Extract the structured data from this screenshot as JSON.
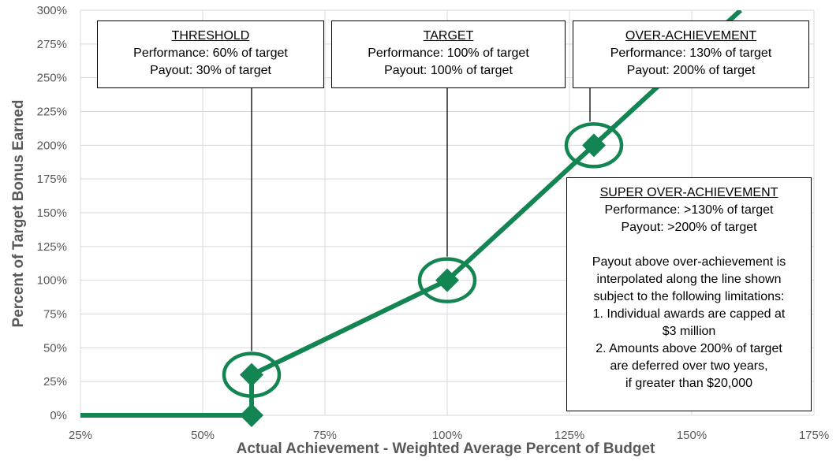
{
  "chart_data": {
    "type": "line",
    "x": [
      25,
      60,
      60,
      100,
      130,
      160
    ],
    "values": [
      0,
      0,
      30,
      100,
      200,
      300
    ],
    "markers": [
      {
        "x": 60,
        "y": 0,
        "highlighted": false
      },
      {
        "x": 60,
        "y": 30,
        "highlighted": true
      },
      {
        "x": 100,
        "y": 100,
        "highlighted": true
      },
      {
        "x": 130,
        "y": 200,
        "highlighted": true
      }
    ],
    "xlim": [
      25,
      175
    ],
    "ylim": [
      0,
      300
    ],
    "x_ticks": [
      25,
      50,
      75,
      100,
      125,
      150,
      175
    ],
    "x_tick_labels": [
      "25%",
      "50%",
      "75%",
      "100%",
      "125%",
      "150%",
      "175%"
    ],
    "y_ticks": [
      0,
      25,
      50,
      75,
      100,
      125,
      150,
      175,
      200,
      225,
      250,
      275,
      300
    ],
    "y_tick_labels": [
      "0%",
      "25%",
      "50%",
      "75%",
      "100%",
      "125%",
      "150%",
      "175%",
      "200%",
      "225%",
      "250%",
      "275%",
      "300%"
    ],
    "xlabel": "Actual Achievement - Weighted Average Percent of Budget",
    "ylabel": "Percent of Target Bonus Earned",
    "grid": true,
    "line_color": "#138552",
    "annotations": {
      "threshold": {
        "title": "THRESHOLD",
        "line1": "Performance: 60% of target",
        "line2": "Payout: 30% of target"
      },
      "target": {
        "title": "TARGET",
        "line1": "Performance: 100% of target",
        "line2": "Payout: 100% of target"
      },
      "over": {
        "title": "OVER-ACHIEVEMENT",
        "line1": "Performance: 130% of target",
        "line2": "Payout: 200% of target"
      },
      "super": {
        "title": "SUPER OVER-ACHIEVEMENT",
        "line1": "Performance: >130% of target",
        "line2": "Payout: >200% of target",
        "note_lines": [
          "Payout above over-achievement is",
          "interpolated along the line shown",
          "subject to the following limitations:",
          "1. Individual awards are capped at",
          "$3 million",
          "2. Amounts above 200% of target",
          "are deferred over two years,",
          "if greater than $20,000"
        ]
      }
    }
  }
}
